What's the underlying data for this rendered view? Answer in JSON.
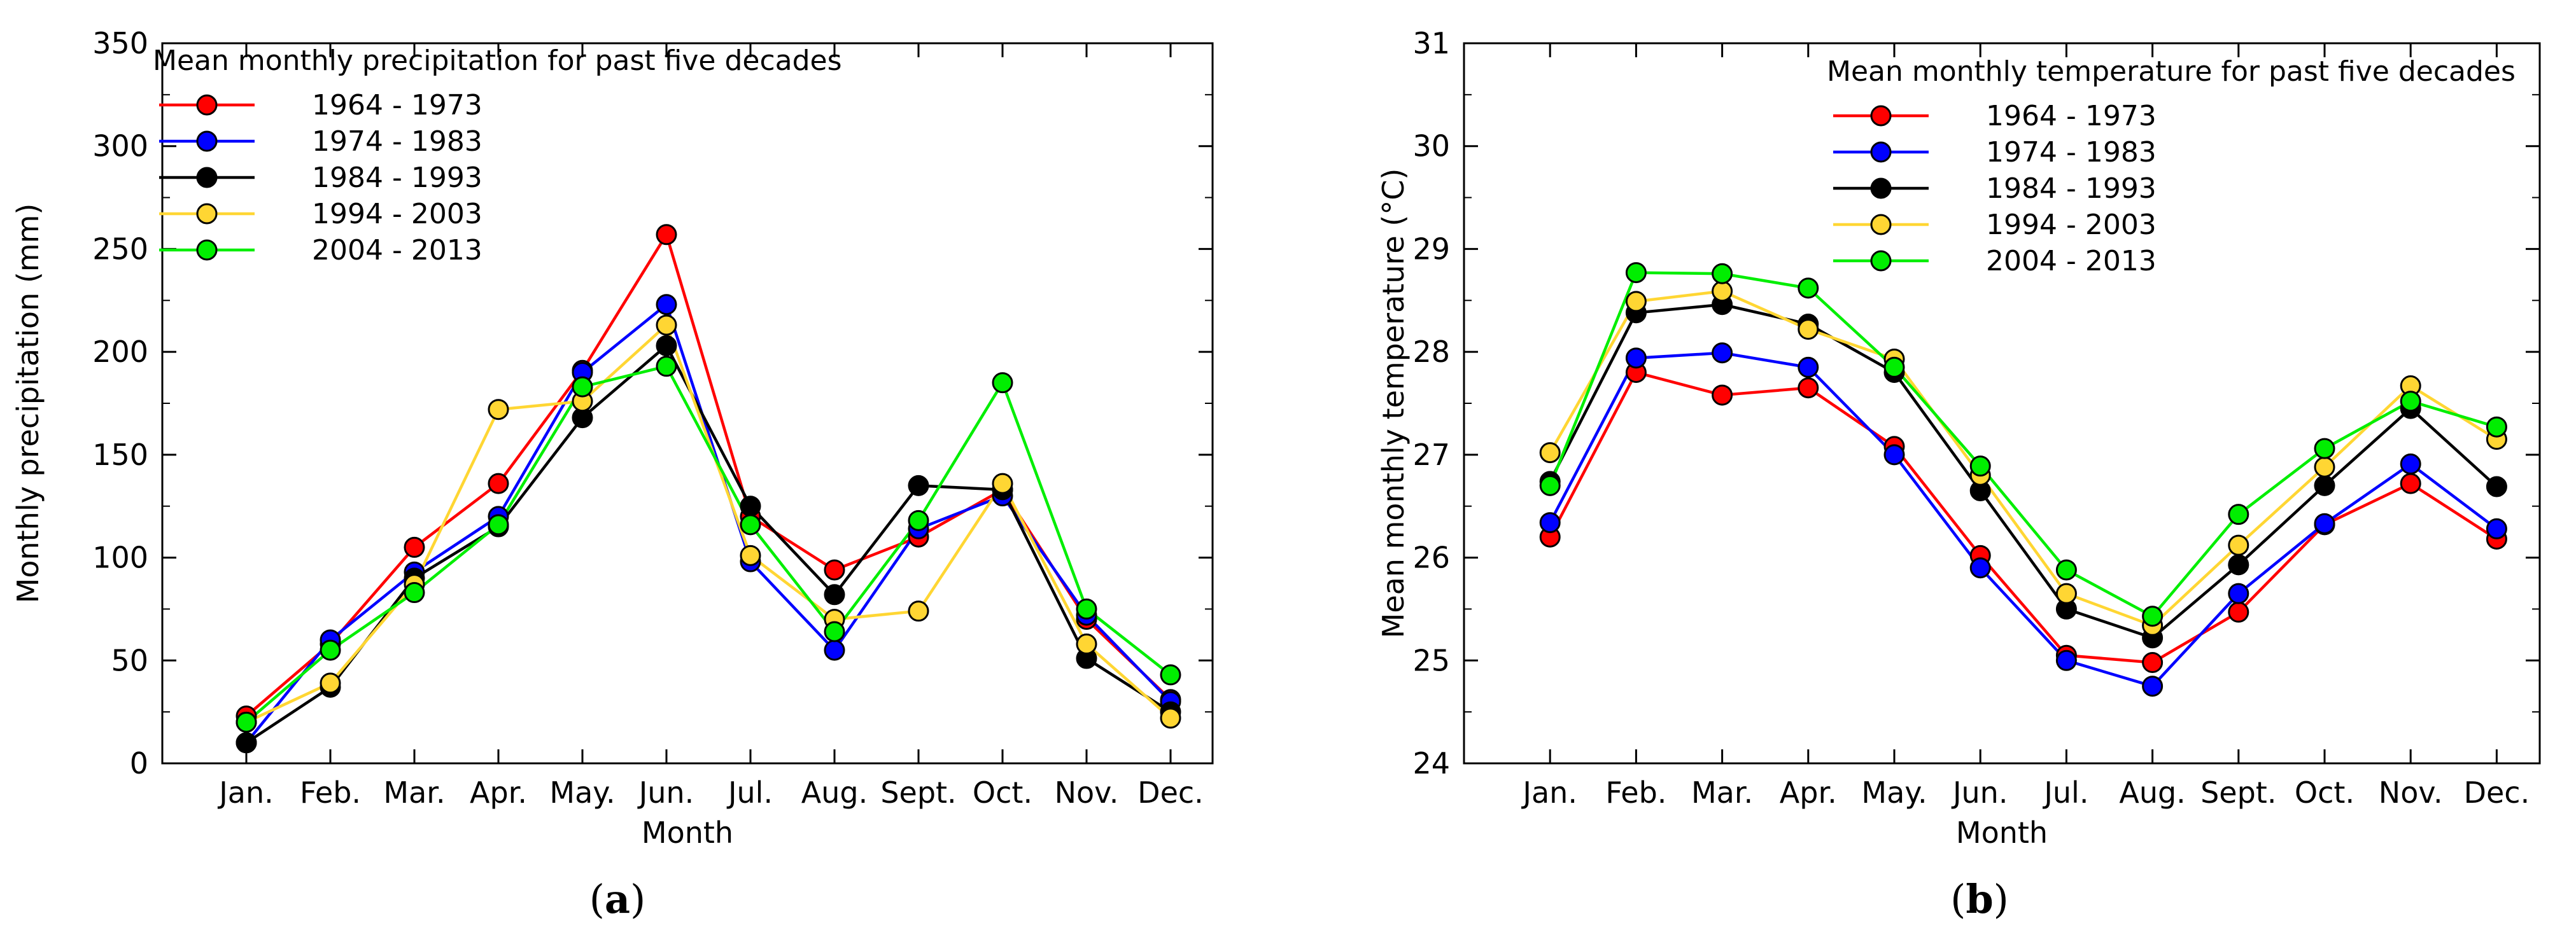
{
  "chart_data": [
    {
      "type": "line",
      "caption": "a",
      "legend_title": "Mean monthly precipitation for past five decades",
      "legend_position": "top-left",
      "xlabel": "Month",
      "ylabel": "Monthly precipitation (mm)",
      "ylim": [
        0,
        350
      ],
      "yticks": [
        "0",
        "50",
        "100",
        "150",
        "200",
        "250",
        "300",
        "350"
      ],
      "categories": [
        "Jan.",
        "Feb.",
        "Mar.",
        "Apr.",
        "May.",
        "Jun.",
        "Jul.",
        "Aug.",
        "Sept.",
        "Oct.",
        "Nov.",
        "Dec."
      ],
      "series": [
        {
          "name": "1964 - 1973",
          "color": "#ff0000",
          "values": [
            23,
            58,
            105,
            136,
            191,
            257,
            120,
            94,
            110,
            133,
            70,
            31
          ]
        },
        {
          "name": "1974 - 1983",
          "color": "#0000ff",
          "values": [
            10,
            60,
            93,
            120,
            190,
            223,
            98,
            55,
            114,
            130,
            72,
            30
          ]
        },
        {
          "name": "1984 - 1993",
          "color": "#000000",
          "values": [
            10,
            37,
            90,
            115,
            168,
            203,
            125,
            82,
            135,
            133,
            51,
            25
          ]
        },
        {
          "name": "1994 - 2003",
          "color": "#ffd633",
          "values": [
            20,
            39,
            87,
            172,
            176,
            213,
            101,
            70,
            74,
            136,
            58,
            22
          ]
        },
        {
          "name": "2004 - 2013",
          "color": "#00ee00",
          "values": [
            20,
            55,
            83,
            116,
            183,
            193,
            116,
            64,
            118,
            185,
            75,
            43
          ]
        }
      ]
    },
    {
      "type": "line",
      "caption": "b",
      "legend_title": "Mean monthly temperature for past five decades",
      "legend_position": "top-right",
      "xlabel": "Month",
      "ylabel": "Mean monthly temperature (°C)",
      "ylim": [
        24,
        31
      ],
      "yticks": [
        "24",
        "25",
        "26",
        "27",
        "28",
        "29",
        "30",
        "31"
      ],
      "categories": [
        "Jan.",
        "Feb.",
        "Mar.",
        "Apr.",
        "May.",
        "Jun.",
        "Jul.",
        "Aug.",
        "Sept.",
        "Oct.",
        "Nov.",
        "Dec."
      ],
      "series": [
        {
          "name": "1964 - 1973",
          "color": "#ff0000",
          "values": [
            26.2,
            27.8,
            27.58,
            27.65,
            27.08,
            26.02,
            25.05,
            24.98,
            25.47,
            26.32,
            26.72,
            26.18
          ]
        },
        {
          "name": "1974 - 1983",
          "color": "#0000ff",
          "values": [
            26.34,
            27.94,
            27.99,
            27.85,
            27.0,
            25.9,
            25.0,
            24.75,
            25.65,
            26.33,
            26.91,
            26.28
          ]
        },
        {
          "name": "1984 - 1993",
          "color": "#000000",
          "values": [
            26.74,
            28.38,
            28.46,
            28.27,
            27.8,
            26.65,
            25.5,
            25.22,
            25.93,
            26.7,
            27.45,
            26.69
          ]
        },
        {
          "name": "1994 - 2003",
          "color": "#ffd633",
          "values": [
            27.02,
            28.49,
            28.59,
            28.22,
            27.93,
            26.8,
            25.65,
            25.34,
            26.12,
            26.88,
            27.67,
            27.15
          ]
        },
        {
          "name": "2004 - 2013",
          "color": "#00ee00",
          "values": [
            26.7,
            28.77,
            28.76,
            28.62,
            27.85,
            26.89,
            25.88,
            25.43,
            26.42,
            27.06,
            27.52,
            27.27
          ]
        }
      ]
    }
  ]
}
